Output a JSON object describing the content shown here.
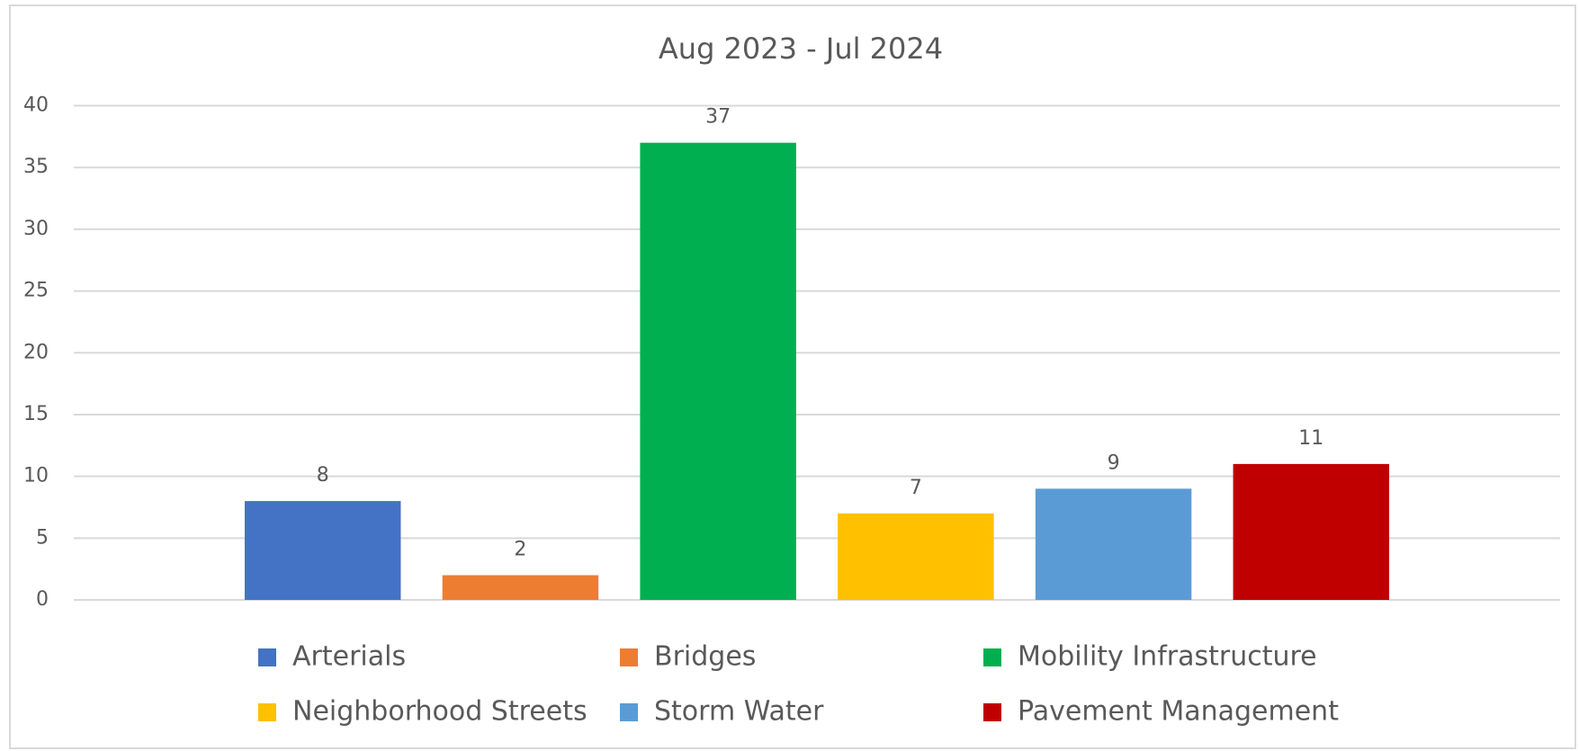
{
  "chart_data": {
    "type": "bar",
    "title": "Aug 2023 - Jul 2024",
    "categories": [
      null
    ],
    "series": [
      {
        "name": "Arterials",
        "color": "#4472c4",
        "values": [
          8
        ]
      },
      {
        "name": "Bridges",
        "color": "#ed7d31",
        "values": [
          2
        ]
      },
      {
        "name": "Mobility Infrastructure",
        "color": "#00b050",
        "values": [
          37
        ]
      },
      {
        "name": "Neighborhood Streets",
        "color": "#ffc000",
        "values": [
          7
        ]
      },
      {
        "name": "Storm Water",
        "color": "#5b9bd5",
        "values": [
          9
        ]
      },
      {
        "name": "Pavement Management",
        "color": "#c00000",
        "values": [
          11
        ]
      }
    ],
    "ylim": [
      0,
      40
    ],
    "yticks": [
      0,
      5,
      10,
      15,
      20,
      25,
      30,
      35,
      40
    ],
    "grid": true,
    "legend": "bottom"
  }
}
